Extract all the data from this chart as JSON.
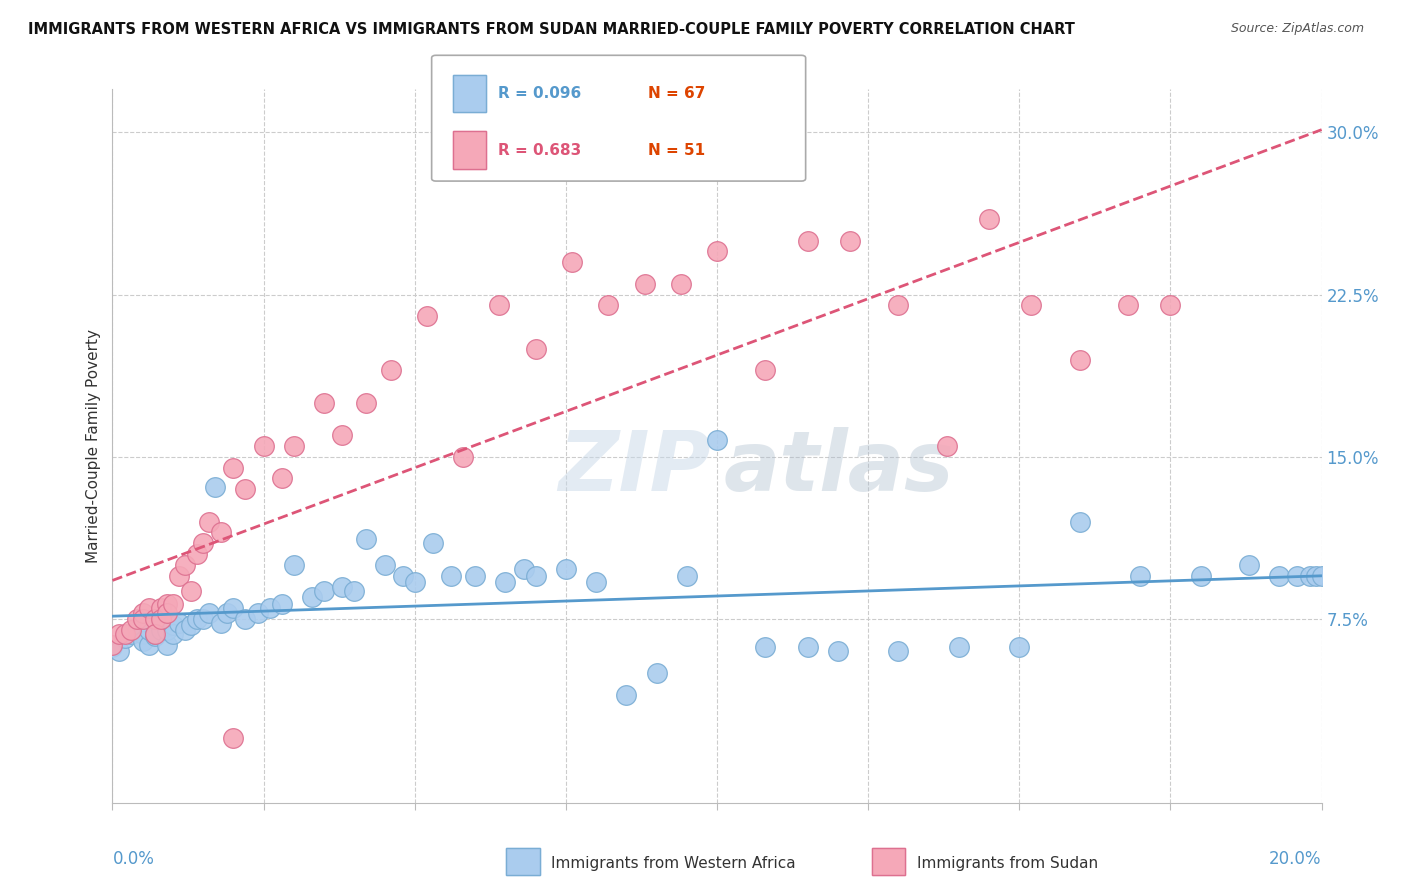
{
  "title": "IMMIGRANTS FROM WESTERN AFRICA VS IMMIGRANTS FROM SUDAN MARRIED-COUPLE FAMILY POVERTY CORRELATION CHART",
  "source": "Source: ZipAtlas.com",
  "ylabel": "Married-Couple Family Poverty",
  "xlim": [
    0.0,
    0.2
  ],
  "ylim": [
    -0.01,
    0.32
  ],
  "watermark_zip": "ZIP",
  "watermark_atlas": "atlas",
  "legend_r1": "R = 0.096",
  "legend_n1": "N = 67",
  "legend_r2": "R = 0.683",
  "legend_n2": "N = 51",
  "series1_label": "Immigrants from Western Africa",
  "series2_label": "Immigrants from Sudan",
  "series1_color": "#aaccee",
  "series1_edge": "#7aadd4",
  "series1_line_color": "#5599cc",
  "series2_color": "#f5a8b8",
  "series2_edge": "#dd7090",
  "series2_line_color": "#dd5577",
  "n_color": "#dd4400",
  "axis_color": "#5599cc",
  "series1_x": [
    0.0,
    0.001,
    0.002,
    0.003,
    0.004,
    0.005,
    0.005,
    0.006,
    0.006,
    0.007,
    0.007,
    0.008,
    0.008,
    0.009,
    0.009,
    0.01,
    0.01,
    0.011,
    0.012,
    0.013,
    0.014,
    0.015,
    0.016,
    0.017,
    0.018,
    0.019,
    0.02,
    0.022,
    0.024,
    0.026,
    0.028,
    0.03,
    0.033,
    0.035,
    0.038,
    0.04,
    0.042,
    0.045,
    0.048,
    0.05,
    0.053,
    0.056,
    0.06,
    0.065,
    0.068,
    0.07,
    0.075,
    0.08,
    0.085,
    0.09,
    0.095,
    0.1,
    0.108,
    0.115,
    0.12,
    0.13,
    0.14,
    0.15,
    0.16,
    0.17,
    0.18,
    0.188,
    0.193,
    0.196,
    0.198,
    0.199,
    0.2
  ],
  "series1_y": [
    0.062,
    0.06,
    0.066,
    0.068,
    0.07,
    0.068,
    0.065,
    0.063,
    0.07,
    0.067,
    0.068,
    0.07,
    0.075,
    0.063,
    0.07,
    0.072,
    0.068,
    0.073,
    0.07,
    0.072,
    0.075,
    0.075,
    0.078,
    0.136,
    0.073,
    0.078,
    0.08,
    0.075,
    0.078,
    0.08,
    0.082,
    0.1,
    0.085,
    0.088,
    0.09,
    0.088,
    0.112,
    0.1,
    0.095,
    0.092,
    0.11,
    0.095,
    0.095,
    0.092,
    0.098,
    0.095,
    0.098,
    0.092,
    0.04,
    0.05,
    0.095,
    0.158,
    0.062,
    0.062,
    0.06,
    0.06,
    0.062,
    0.062,
    0.12,
    0.095,
    0.095,
    0.1,
    0.095,
    0.095,
    0.095,
    0.095,
    0.095
  ],
  "series2_x": [
    0.0,
    0.001,
    0.002,
    0.003,
    0.004,
    0.005,
    0.005,
    0.006,
    0.007,
    0.007,
    0.008,
    0.008,
    0.009,
    0.009,
    0.01,
    0.011,
    0.012,
    0.013,
    0.014,
    0.015,
    0.016,
    0.018,
    0.02,
    0.022,
    0.025,
    0.028,
    0.03,
    0.035,
    0.038,
    0.042,
    0.046,
    0.052,
    0.058,
    0.064,
    0.07,
    0.076,
    0.082,
    0.088,
    0.094,
    0.1,
    0.108,
    0.115,
    0.122,
    0.13,
    0.138,
    0.145,
    0.152,
    0.16,
    0.168,
    0.175,
    0.02
  ],
  "series2_y": [
    0.063,
    0.068,
    0.068,
    0.07,
    0.075,
    0.078,
    0.075,
    0.08,
    0.075,
    0.068,
    0.08,
    0.075,
    0.082,
    0.078,
    0.082,
    0.095,
    0.1,
    0.088,
    0.105,
    0.11,
    0.12,
    0.115,
    0.145,
    0.135,
    0.155,
    0.14,
    0.155,
    0.175,
    0.16,
    0.175,
    0.19,
    0.215,
    0.15,
    0.22,
    0.2,
    0.24,
    0.22,
    0.23,
    0.23,
    0.245,
    0.19,
    0.25,
    0.25,
    0.22,
    0.155,
    0.26,
    0.22,
    0.195,
    0.22,
    0.22,
    0.02
  ]
}
